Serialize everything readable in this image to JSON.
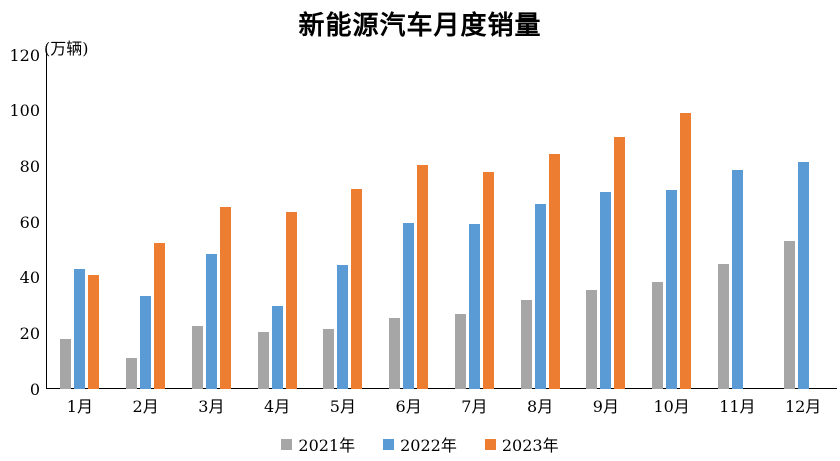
{
  "chart_data": {
    "type": "bar",
    "title": "新能源汽车月度销量",
    "unit_label": "(万辆)",
    "xlabel": "",
    "ylabel": "万辆",
    "categories": [
      "1月",
      "2月",
      "3月",
      "4月",
      "5月",
      "6月",
      "7月",
      "8月",
      "9月",
      "10月",
      "11月",
      "12月"
    ],
    "series": [
      {
        "name": "2021年",
        "color": "#A6A6A6",
        "values": [
          17.9,
          11.0,
          22.6,
          20.6,
          21.7,
          25.6,
          27.1,
          32.1,
          35.7,
          38.3,
          45.0,
          53.1
        ]
      },
      {
        "name": "2022年",
        "color": "#5B9BD5",
        "values": [
          43.1,
          33.4,
          48.4,
          29.9,
          44.7,
          59.6,
          59.3,
          66.6,
          70.8,
          71.4,
          78.6,
          81.4
        ]
      },
      {
        "name": "2023年",
        "color": "#ED7D31",
        "values": [
          40.8,
          52.5,
          65.3,
          63.6,
          71.7,
          80.6,
          78.0,
          84.6,
          90.4,
          99.0,
          null,
          null
        ]
      }
    ],
    "y_axis": {
      "min": 0,
      "max": 120,
      "step": 20,
      "tick_labels": [
        "0",
        "20",
        "40",
        "60",
        "80",
        "100",
        "120"
      ]
    },
    "legend_position": "bottom",
    "grid": false,
    "axis_color": "#000000",
    "background_color": "#FFFFFF"
  }
}
